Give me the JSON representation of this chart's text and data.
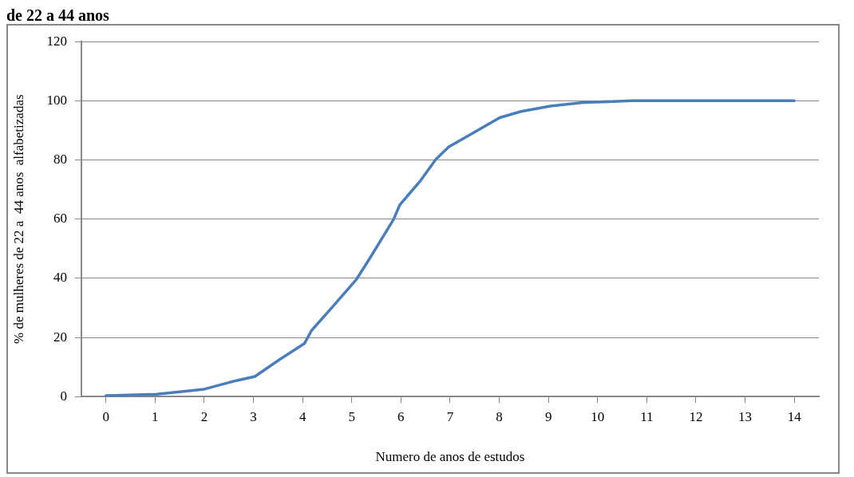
{
  "chart_data": {
    "type": "line",
    "title": "de 22 a 44 anos",
    "xlabel": "Numero de anos de estudos",
    "ylabel": "% de mulheres de 22 a  44 anos  alfabetizadas",
    "x": [
      0,
      1.03,
      2,
      2.65,
      3.03,
      3.52,
      4.04,
      4.18,
      4.56,
      5.09,
      5.38,
      5.84,
      5.98,
      6.38,
      6.71,
      6.97,
      8.01,
      8.44,
      9.04,
      9.7,
      10.7,
      14
    ],
    "series": [
      {
        "color": "#4a7ebb",
        "values": [
          0.3,
          0.8,
          2.5,
          5.4,
          6.8,
          12.4,
          18,
          22.3,
          29.4,
          39.5,
          47.1,
          59.6,
          64.9,
          72.6,
          80.2,
          84.4,
          94.3,
          96.4,
          98.2,
          99.4,
          100,
          100
        ]
      }
    ],
    "xlim": [
      -0.5,
      14.5
    ],
    "xticks": [
      0,
      1,
      2,
      3,
      4,
      5,
      6,
      7,
      8,
      9,
      10,
      11,
      12,
      13,
      14
    ],
    "ylim": [
      0,
      120
    ],
    "yticks": [
      0,
      20,
      40,
      60,
      80,
      100,
      120
    ],
    "grid": "y",
    "legend": false,
    "marker": "none",
    "line_style": "solid"
  }
}
